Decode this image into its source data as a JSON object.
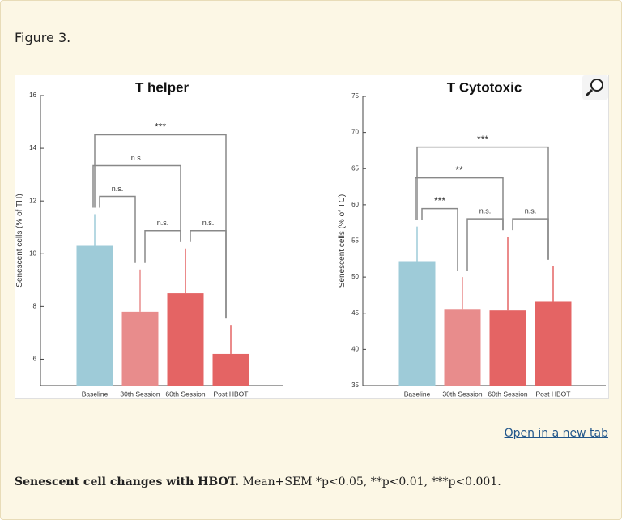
{
  "figure_label": "Figure 3.",
  "link": "Open in a new tab",
  "caption": {
    "bold": "Senescent cell changes with HBOT.",
    "text": " Mean+SEM *p<0.05, **p<0.01, ***p<0.001."
  },
  "chart_data": [
    {
      "type": "bar",
      "title": "T helper",
      "y_label": "Senescent cells (% of TH)",
      "categories": [
        "Baseline",
        "30th Session",
        "60th Session",
        "Post HBOT"
      ],
      "values": [
        10.3,
        7.8,
        8.5,
        6.2
      ],
      "errors": [
        1.2,
        1.6,
        1.7,
        1.1
      ],
      "colors": [
        "#9ecbd8",
        "#e88c8c",
        "#e46464",
        "#e46464"
      ],
      "ylim": [
        5,
        16
      ],
      "yticks": [
        6,
        8,
        10,
        12,
        14,
        16
      ],
      "grid": false,
      "comparisons": [
        {
          "label": "n.s.",
          "from": "Baseline",
          "to": "30th Session"
        },
        {
          "label": "n.s.",
          "from": "30th Session",
          "to": "60th Session"
        },
        {
          "label": "n.s.",
          "from": "60th Session",
          "to": "Post HBOT"
        },
        {
          "label": "n.s.",
          "from": "Baseline",
          "to": "60th Session"
        },
        {
          "label": "***",
          "from": "Baseline",
          "to": "Post HBOT"
        }
      ]
    },
    {
      "type": "bar",
      "title": "T Cytotoxic",
      "y_label": "Senescent cells (% of TC)",
      "categories": [
        "Baseline",
        "30th Session",
        "60th Session",
        "Post HBOT"
      ],
      "values": [
        52.2,
        45.5,
        45.4,
        46.6
      ],
      "errors": [
        4.8,
        4.5,
        10.2,
        4.9
      ],
      "colors": [
        "#9ecbd8",
        "#e88c8c",
        "#e46464",
        "#e46464"
      ],
      "ylim": [
        35,
        75
      ],
      "yticks": [
        35,
        40,
        45,
        50,
        55,
        60,
        65,
        70,
        75
      ],
      "grid": false,
      "comparisons": [
        {
          "label": "***",
          "from": "Baseline",
          "to": "30th Session"
        },
        {
          "label": "n.s.",
          "from": "30th Session",
          "to": "60th Session"
        },
        {
          "label": "n.s.",
          "from": "60th Session",
          "to": "Post HBOT"
        },
        {
          "label": "**",
          "from": "Baseline",
          "to": "60th Session"
        },
        {
          "label": "***",
          "from": "Baseline",
          "to": "Post HBOT"
        }
      ]
    }
  ]
}
